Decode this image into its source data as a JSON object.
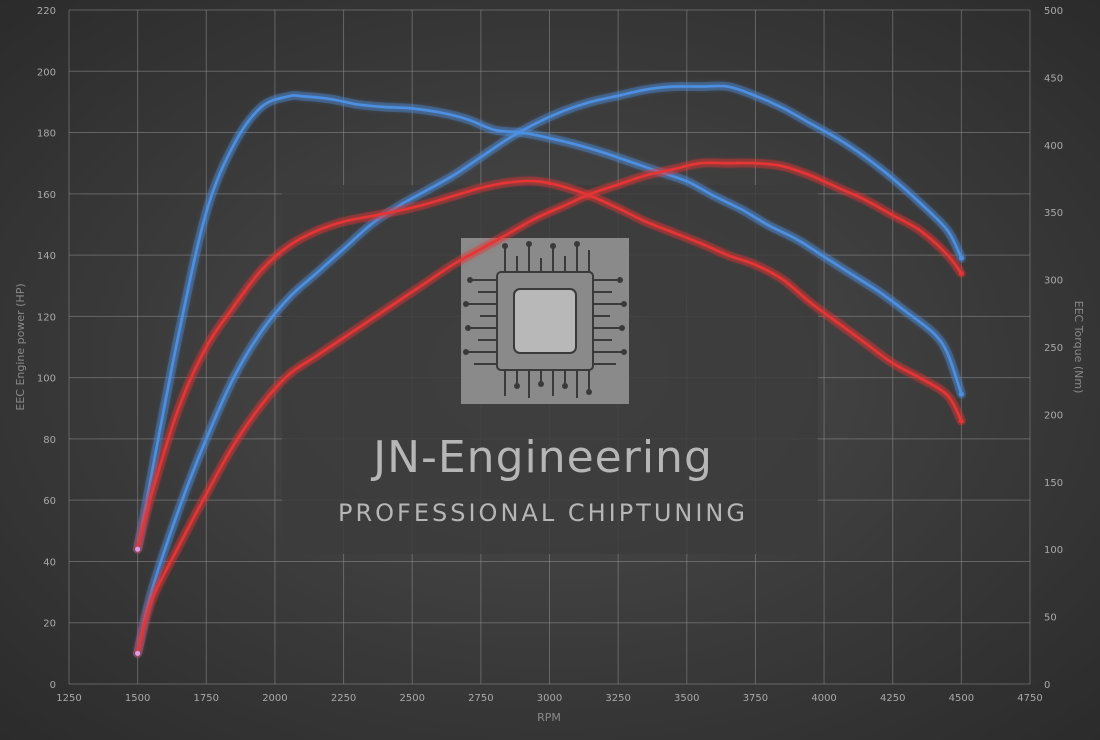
{
  "chart_data": {
    "type": "line",
    "xlabel": "RPM",
    "ylabel_left": "EEC Engine power (HP)",
    "ylabel_right": "EEC Torque (Nm)",
    "xlim": [
      1250,
      4750
    ],
    "ylim_left": [
      0,
      220
    ],
    "ylim_right": [
      0,
      500
    ],
    "x_ticks": [
      1250,
      1500,
      1750,
      2000,
      2250,
      2500,
      2750,
      3000,
      3250,
      3500,
      3750,
      4000,
      4250,
      4500,
      4750
    ],
    "y_left_ticks": [
      0,
      20,
      40,
      60,
      80,
      100,
      120,
      140,
      160,
      180,
      200,
      220
    ],
    "y_right_ticks": [
      0,
      50,
      100,
      150,
      200,
      250,
      300,
      350,
      400,
      450,
      500
    ],
    "grid": true,
    "series": [
      {
        "color": "#4d8fe0",
        "axis": "right",
        "x": [
          1500,
          1550,
          1650,
          1750,
          1850,
          1950,
          2050,
          2100,
          2200,
          2300,
          2400,
          2500,
          2600,
          2700,
          2800,
          2900,
          3000,
          3100,
          3200,
          3300,
          3400,
          3500,
          3600,
          3700,
          3800,
          3900,
          4000,
          4100,
          4200,
          4300,
          4400,
          4450,
          4500
        ],
        "values": [
          100,
          155,
          260,
          350,
          400,
          428,
          436,
          436,
          434,
          430,
          428,
          427,
          424,
          419,
          411,
          409,
          405,
          400,
          394,
          387,
          380,
          373,
          362,
          352,
          340,
          330,
          317,
          304,
          291,
          276,
          260,
          245,
          215
        ]
      },
      {
        "color": "#4d8fe0",
        "axis": "left",
        "x": [
          1500,
          1550,
          1650,
          1750,
          1850,
          1950,
          2050,
          2150,
          2250,
          2350,
          2450,
          2550,
          2650,
          2750,
          2850,
          2950,
          3050,
          3150,
          3250,
          3350,
          3450,
          3550,
          3650,
          3750,
          3850,
          3950,
          4050,
          4150,
          4250,
          4350,
          4450,
          4500
        ],
        "values": [
          10,
          30,
          57,
          80,
          100,
          115,
          126,
          134,
          142,
          150,
          156,
          161,
          166,
          172,
          178,
          183,
          187,
          190,
          192,
          194,
          195,
          195,
          195,
          192,
          188,
          183,
          178,
          172,
          165,
          157,
          148,
          139
        ]
      },
      {
        "color": "#e53434",
        "axis": "right",
        "x": [
          1500,
          1550,
          1650,
          1750,
          1850,
          1950,
          2050,
          2150,
          2250,
          2350,
          2450,
          2550,
          2650,
          2750,
          2850,
          2950,
          3050,
          3150,
          3250,
          3350,
          3450,
          3550,
          3650,
          3750,
          3850,
          3950,
          4050,
          4150,
          4250,
          4350,
          4450,
          4500
        ],
        "values": [
          100,
          140,
          205,
          250,
          280,
          307,
          325,
          336,
          343,
          347,
          351,
          356,
          362,
          368,
          372,
          373,
          369,
          362,
          353,
          343,
          335,
          327,
          318,
          311,
          300,
          283,
          268,
          253,
          238,
          227,
          214,
          195
        ]
      },
      {
        "color": "#e53434",
        "axis": "left",
        "x": [
          1500,
          1550,
          1650,
          1750,
          1850,
          1950,
          2050,
          2150,
          2250,
          2350,
          2450,
          2550,
          2650,
          2750,
          2850,
          2950,
          3050,
          3150,
          3250,
          3350,
          3450,
          3550,
          3650,
          3750,
          3850,
          3950,
          4050,
          4150,
          4250,
          4350,
          4450,
          4500
        ],
        "values": [
          10,
          27,
          45,
          62,
          78,
          91,
          101,
          107,
          113,
          119,
          125,
          131,
          137,
          142,
          147,
          152,
          156,
          160,
          163,
          166,
          168,
          170,
          170,
          170,
          169,
          166,
          162,
          158,
          153,
          148,
          140,
          134
        ]
      }
    ]
  },
  "watermark": {
    "title": "JN-Engineering",
    "subtitle": "PROFESSIONAL CHIPTUNING"
  }
}
